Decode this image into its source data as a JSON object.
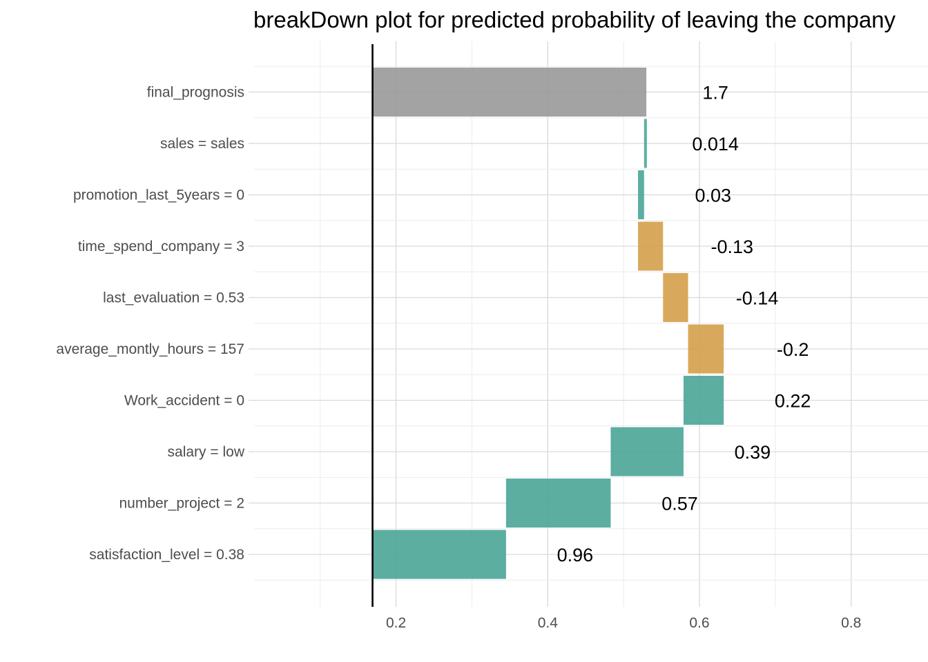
{
  "chart_data": {
    "type": "bar",
    "subtype": "waterfall",
    "orientation": "horizontal",
    "title": "breakDown plot for predicted probability of leaving the company",
    "xlabel": "",
    "ylabel": "",
    "xlim": [
      0.03,
      0.86
    ],
    "x_ticks": [
      0.2,
      0.4,
      0.6,
      0.8
    ],
    "x_tick_labels": [
      "0.2",
      "0.4",
      "0.6",
      "0.8"
    ],
    "grid": true,
    "baseline": 0.169,
    "colors": {
      "positive": "#4aa597",
      "negative": "#d4a04a",
      "final": "#999999",
      "baseline_line": "#000000"
    },
    "bars": [
      {
        "label": "satisfaction_level = 0.38",
        "start": 0.169,
        "end": 0.345,
        "value_label": "0.96",
        "kind": "positive"
      },
      {
        "label": "number_project = 2",
        "start": 0.345,
        "end": 0.483,
        "value_label": "0.57",
        "kind": "positive"
      },
      {
        "label": "salary = low",
        "start": 0.483,
        "end": 0.579,
        "value_label": "0.39",
        "kind": "positive"
      },
      {
        "label": "Work_accident = 0",
        "start": 0.579,
        "end": 0.632,
        "value_label": "0.22",
        "kind": "positive"
      },
      {
        "label": "average_montly_hours = 157",
        "start": 0.632,
        "end": 0.585,
        "value_label": "-0.2",
        "kind": "negative"
      },
      {
        "label": "last_evaluation = 0.53",
        "start": 0.585,
        "end": 0.552,
        "value_label": "-0.14",
        "kind": "negative"
      },
      {
        "label": "time_spend_company = 3",
        "start": 0.552,
        "end": 0.519,
        "value_label": "-0.13",
        "kind": "negative"
      },
      {
        "label": "promotion_last_5years = 0",
        "start": 0.519,
        "end": 0.527,
        "value_label": "0.03",
        "kind": "positive"
      },
      {
        "label": "sales = sales",
        "start": 0.527,
        "end": 0.53,
        "value_label": "0.014",
        "kind": "positive"
      },
      {
        "label": "final_prognosis",
        "start": 0.169,
        "end": 0.53,
        "value_label": "1.7",
        "kind": "final"
      }
    ]
  }
}
